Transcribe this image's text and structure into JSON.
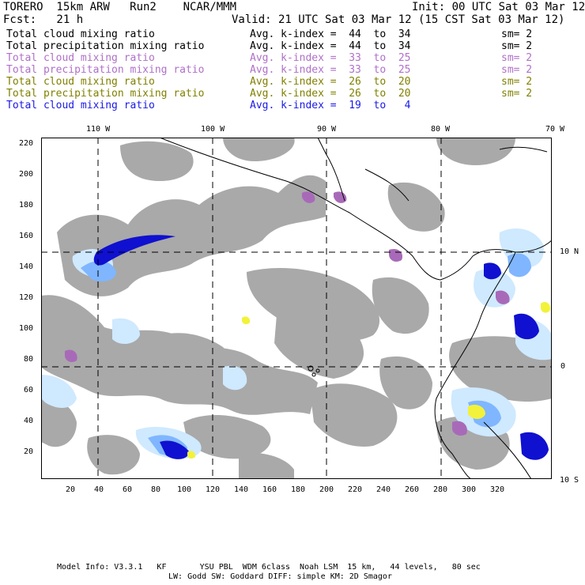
{
  "header": {
    "model": "TORERO  15km ARW   Run2    NCAR/MMM",
    "init": "Init: 00 UTC Sat 03 Mar 12",
    "fcst": "Fcst:   21 h",
    "valid": "Valid: 21 UTC Sat 03 Mar 12 (15 CST Sat 03 Mar 12)"
  },
  "legend": [
    {
      "field": "Total cloud mixing ratio",
      "kindex": "Avg. k-index =  44  to  34",
      "sm": "sm= 2",
      "color": "#000000"
    },
    {
      "field": "Total precipitation mixing ratio",
      "kindex": "Avg. k-index =  44  to  34",
      "sm": "sm= 2",
      "color": "#000000"
    },
    {
      "field": "Total cloud mixing ratio",
      "kindex": "Avg. k-index =  33  to  25",
      "sm": "sm= 2",
      "color": "#b070c8"
    },
    {
      "field": "Total precipitation mixing ratio",
      "kindex": "Avg. k-index =  33  to  25",
      "sm": "sm= 2",
      "color": "#b070c8"
    },
    {
      "field": "Total cloud mixing ratio",
      "kindex": "Avg. k-index =  26  to  20",
      "sm": "sm= 2",
      "color": "#808000"
    },
    {
      "field": "Total precipitation mixing ratio",
      "kindex": "Avg. k-index =  26  to  20",
      "sm": "sm= 2",
      "color": "#808000"
    },
    {
      "field": "Total cloud mixing ratio",
      "kindex": "Avg. k-index =  19  to   4",
      "sm": "",
      "color": "#1a1ae6"
    }
  ],
  "map": {
    "lon_labels": [
      "110 W",
      "100 W",
      "90 W",
      "80 W",
      "70 W"
    ],
    "lat_labels": [
      "10 N",
      "0",
      "10 S"
    ],
    "x_ticks": [
      "20",
      "40",
      "60",
      "80",
      "100",
      "120",
      "140",
      "160",
      "180",
      "200",
      "220",
      "240",
      "260",
      "280",
      "300",
      "320"
    ],
    "y_ticks": [
      "20",
      "40",
      "60",
      "80",
      "100",
      "120",
      "140",
      "160",
      "180",
      "200",
      "220"
    ],
    "colors": {
      "cloud_gray": "#a9a9a9",
      "light_blue": "#cfe9ff",
      "mid_blue": "#7fb6ff",
      "dark_blue": "#1010d0",
      "violet": "#a86ab8",
      "yellow": "#f2f23a",
      "coast": "#000000"
    }
  },
  "footer": {
    "line1": "Model Info: V3.3.1   KF       YSU PBL  WDM 6class  Noah LSM  15 km,   44 levels,   80 sec",
    "line2": "LW: Godd SW: Goddard DIFF: simple KM: 2D Smagor"
  }
}
